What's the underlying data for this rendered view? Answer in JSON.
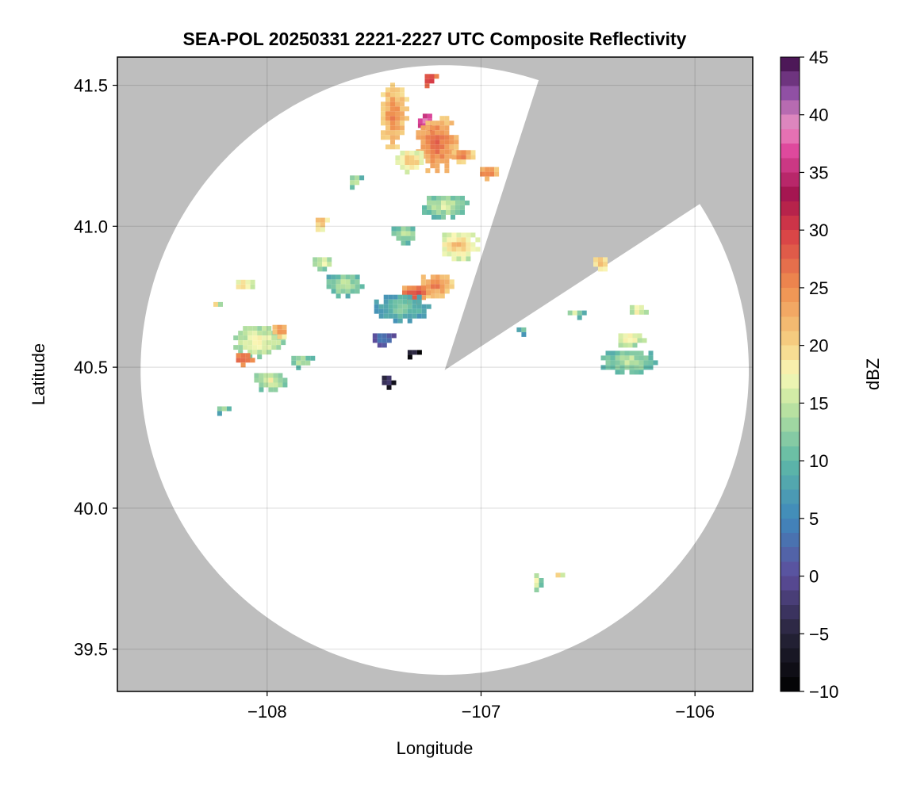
{
  "chart_data": {
    "type": "heatmap",
    "title": "SEA-POL 20250331 2221-2227 UTC Composite Reflectivity",
    "xlabel": "Longitude",
    "ylabel": "Latitude",
    "xlim": [
      -108.7,
      -105.73
    ],
    "ylim": [
      39.35,
      41.6
    ],
    "xticks": [
      -108,
      -107,
      -106
    ],
    "xtick_labels": [
      "−108",
      "−107",
      "−106"
    ],
    "yticks": [
      39.5,
      40.0,
      40.5,
      41.0,
      41.5
    ],
    "ytick_labels": [
      "39.5",
      "40.0",
      "40.5",
      "41.0",
      "41.5"
    ],
    "grid": true,
    "background_color": "#bebebe",
    "coverage": {
      "center": [
        -107.17,
        40.49
      ],
      "radius_km": 120,
      "blocked_sectors_deg_from_north": [
        [
          18,
          57
        ]
      ]
    },
    "colorbar": {
      "label": "dBZ",
      "colormap": "spectral (reversed)",
      "range": [
        -10,
        45
      ],
      "ticks": [
        -10,
        -5,
        0,
        5,
        10,
        15,
        20,
        25,
        30,
        35,
        40,
        45
      ],
      "tick_labels": [
        "−10",
        "−5",
        "0",
        "5",
        "10",
        "15",
        "20",
        "25",
        "30",
        "35",
        "40",
        "45"
      ],
      "stops": [
        [
          -10,
          "#000000"
        ],
        [
          -5,
          "#27243a"
        ],
        [
          0,
          "#5d4d9c"
        ],
        [
          5,
          "#3f88bc"
        ],
        [
          10,
          "#5fb9a6"
        ],
        [
          15,
          "#c5e7a0"
        ],
        [
          17.5,
          "#f9f8b8"
        ],
        [
          20,
          "#f6d486"
        ],
        [
          25,
          "#ef8e4f"
        ],
        [
          30,
          "#d73c46"
        ],
        [
          33,
          "#a3144e"
        ],
        [
          37,
          "#e04ba0"
        ],
        [
          39,
          "#e98ec2"
        ],
        [
          42,
          "#8c4da3"
        ],
        [
          45,
          "#3c0a44"
        ]
      ]
    },
    "echo_regions": [
      {
        "lon": -107.42,
        "lat": 41.4,
        "rx_km": 6,
        "ry_km": 14,
        "dbz": 26
      },
      {
        "lon": -107.27,
        "lat": 41.38,
        "rx_km": 4,
        "ry_km": 4,
        "dbz": 40
      },
      {
        "lon": -107.22,
        "lat": 41.3,
        "rx_km": 9,
        "ry_km": 12,
        "dbz": 28
      },
      {
        "lon": -107.25,
        "lat": 41.53,
        "rx_km": 3,
        "ry_km": 3,
        "dbz": 33
      },
      {
        "lon": -107.34,
        "lat": 41.24,
        "rx_km": 7,
        "ry_km": 5,
        "dbz": 22
      },
      {
        "lon": -107.1,
        "lat": 41.26,
        "rx_km": 5,
        "ry_km": 3,
        "dbz": 27
      },
      {
        "lon": -106.98,
        "lat": 41.2,
        "rx_km": 4,
        "ry_km": 3,
        "dbz": 28
      },
      {
        "lon": -107.18,
        "lat": 41.08,
        "rx_km": 10,
        "ry_km": 5,
        "dbz": 17
      },
      {
        "lon": -107.12,
        "lat": 40.94,
        "rx_km": 9,
        "ry_km": 6,
        "dbz": 22
      },
      {
        "lon": -107.37,
        "lat": 40.98,
        "rx_km": 6,
        "ry_km": 4,
        "dbz": 16
      },
      {
        "lon": -107.22,
        "lat": 40.8,
        "rx_km": 7,
        "ry_km": 5,
        "dbz": 27
      },
      {
        "lon": -107.32,
        "lat": 40.77,
        "rx_km": 6,
        "ry_km": 4,
        "dbz": 30
      },
      {
        "lon": -107.38,
        "lat": 40.72,
        "rx_km": 12,
        "ry_km": 6,
        "dbz": 13
      },
      {
        "lon": -107.47,
        "lat": 40.61,
        "rx_km": 5,
        "ry_km": 3,
        "dbz": 6
      },
      {
        "lon": -107.45,
        "lat": 40.46,
        "rx_km": 3,
        "ry_km": 3,
        "dbz": -1
      },
      {
        "lon": -107.33,
        "lat": 40.56,
        "rx_km": 3,
        "ry_km": 2,
        "dbz": -2
      },
      {
        "lon": -107.65,
        "lat": 40.8,
        "rx_km": 8,
        "ry_km": 5,
        "dbz": 16
      },
      {
        "lon": -107.75,
        "lat": 40.88,
        "rx_km": 5,
        "ry_km": 3,
        "dbz": 18
      },
      {
        "lon": -107.76,
        "lat": 41.02,
        "rx_km": 3,
        "ry_km": 3,
        "dbz": 24
      },
      {
        "lon": -107.6,
        "lat": 41.17,
        "rx_km": 3,
        "ry_km": 3,
        "dbz": 17
      },
      {
        "lon": -108.05,
        "lat": 40.6,
        "rx_km": 11,
        "ry_km": 7,
        "dbz": 19
      },
      {
        "lon": -108.12,
        "lat": 40.54,
        "rx_km": 4,
        "ry_km": 3,
        "dbz": 30
      },
      {
        "lon": -107.95,
        "lat": 40.64,
        "rx_km": 4,
        "ry_km": 3,
        "dbz": 26
      },
      {
        "lon": -108.0,
        "lat": 40.46,
        "rx_km": 7,
        "ry_km": 4,
        "dbz": 18
      },
      {
        "lon": -108.12,
        "lat": 40.8,
        "rx_km": 4,
        "ry_km": 3,
        "dbz": 22
      },
      {
        "lon": -107.85,
        "lat": 40.53,
        "rx_km": 5,
        "ry_km": 3,
        "dbz": 16
      },
      {
        "lon": -108.25,
        "lat": 40.73,
        "rx_km": 2,
        "ry_km": 2,
        "dbz": 20
      },
      {
        "lon": -108.22,
        "lat": 40.36,
        "rx_km": 3,
        "ry_km": 2,
        "dbz": 15
      },
      {
        "lon": -106.32,
        "lat": 40.53,
        "rx_km": 12,
        "ry_km": 5,
        "dbz": 16
      },
      {
        "lon": -106.32,
        "lat": 40.61,
        "rx_km": 7,
        "ry_km": 3,
        "dbz": 20
      },
      {
        "lon": -106.28,
        "lat": 40.71,
        "rx_km": 4,
        "ry_km": 3,
        "dbz": 19
      },
      {
        "lon": -106.45,
        "lat": 40.88,
        "rx_km": 4,
        "ry_km": 3,
        "dbz": 24
      },
      {
        "lon": -106.57,
        "lat": 40.7,
        "rx_km": 4,
        "ry_km": 2,
        "dbz": 16
      },
      {
        "lon": -106.82,
        "lat": 40.64,
        "rx_km": 3,
        "ry_km": 2,
        "dbz": 12
      },
      {
        "lon": -106.75,
        "lat": 39.75,
        "rx_km": 2,
        "ry_km": 4,
        "dbz": 18
      },
      {
        "lon": -106.65,
        "lat": 39.77,
        "rx_km": 2,
        "ry_km": 2,
        "dbz": 22
      }
    ]
  }
}
